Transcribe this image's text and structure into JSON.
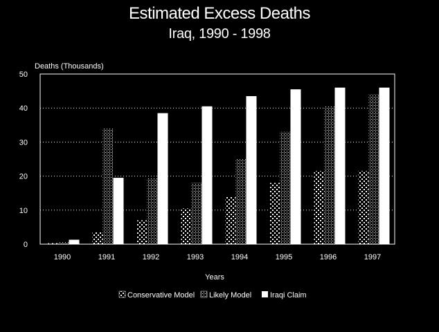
{
  "chart_data": {
    "type": "bar",
    "title": "Estimated Excess Deaths",
    "subtitle": "Iraq, 1990 - 1998",
    "xlabel": "Years",
    "ylabel": "Deaths (Thousands)",
    "ylim": [
      0,
      50
    ],
    "yticks": [
      0,
      10,
      20,
      30,
      40,
      50
    ],
    "grid": true,
    "legend_position": "bottom",
    "categories": [
      "1990",
      "1991",
      "1992",
      "1993",
      "1994",
      "1995",
      "1996",
      "1997"
    ],
    "series": [
      {
        "name": "Conservative Model",
        "pattern": "dots-sparse",
        "values": [
          0.3,
          3.5,
          7,
          10.5,
          14,
          18,
          21.5,
          21.5
        ]
      },
      {
        "name": "Likely Model",
        "pattern": "dots-dense",
        "values": [
          0.6,
          34,
          19.5,
          18,
          25,
          33,
          40.5,
          44
        ]
      },
      {
        "name": "Iraqi Claim",
        "pattern": "solid-white",
        "values": [
          1.3,
          19.5,
          38.5,
          40.5,
          43.5,
          45.5,
          46,
          46
        ]
      }
    ]
  }
}
